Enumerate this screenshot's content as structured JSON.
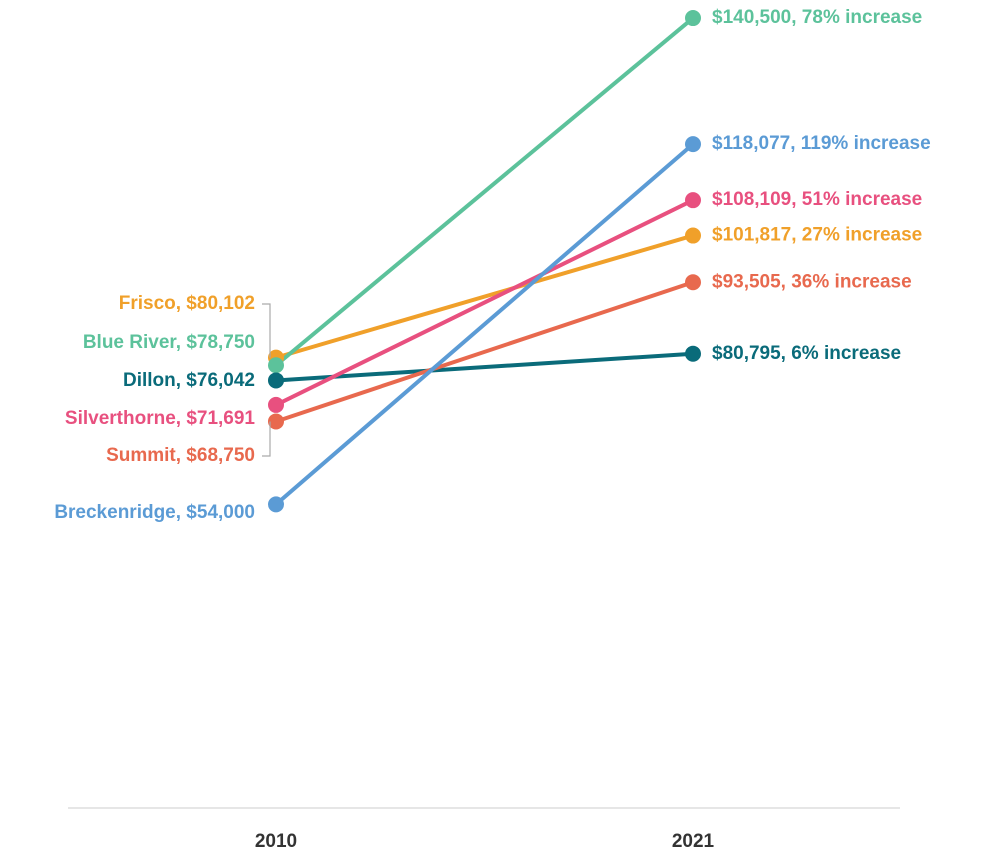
{
  "chart_data": {
    "type": "slope",
    "categories": [
      "2010",
      "2021"
    ],
    "ylim": [
      0,
      143000
    ],
    "series": [
      {
        "color": "#f0a02a",
        "values": [
          80102,
          101817
        ],
        "value_labels": [
          "Frisco, $80,102",
          "$101,817, 27% increase"
        ]
      },
      {
        "color": "#5cc29b",
        "values": [
          78750,
          140500
        ],
        "value_labels": [
          "Blue River, $78,750",
          "$140,500, 78% increase"
        ]
      },
      {
        "color": "#0a6b7a",
        "values": [
          76042,
          80795
        ],
        "value_labels": [
          "Dillon, $76,042",
          "$80,795, 6% increase"
        ]
      },
      {
        "color": "#e8507f",
        "values": [
          71691,
          108109
        ],
        "value_labels": [
          "Silverthorne, $71,691",
          "$108,109, 51% increase"
        ]
      },
      {
        "color": "#e8694e",
        "values": [
          68750,
          93505
        ],
        "value_labels": [
          "Summit, $68,750",
          "$93,505, 36% increase"
        ]
      },
      {
        "color": "#5b9bd5",
        "values": [
          54000,
          118077
        ],
        "value_labels": [
          "Breckenridge, $54,000",
          "$118,077, 119% increase"
        ]
      }
    ]
  }
}
